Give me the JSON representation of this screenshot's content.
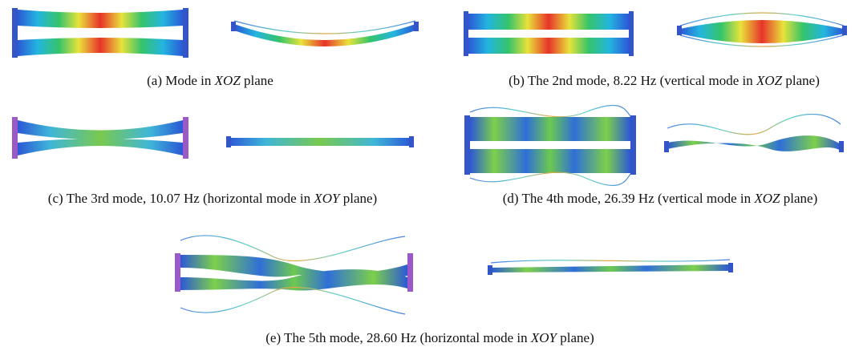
{
  "figure": {
    "panels": [
      {
        "caption": {
          "prefix": "(a) Mode in ",
          "plane": "XOZ",
          "suffix": " plane"
        }
      },
      {
        "caption": {
          "prefix": "(b) The 2nd mode, 8.22 Hz (vertical mode in ",
          "plane": "XOZ",
          "suffix": " plane)"
        }
      },
      {
        "caption": {
          "prefix": "(c) The 3rd mode, 10.07 Hz (horizontal mode in ",
          "plane": "XOY",
          "suffix": " plane)"
        }
      },
      {
        "caption": {
          "prefix": "(d) The 4th mode, 26.39 Hz (vertical mode in ",
          "plane": "XOZ",
          "suffix": " plane)"
        }
      },
      {
        "caption": {
          "prefix": "(e) The 5th mode, 28.60 Hz (horizontal mode in ",
          "plane": "XOY",
          "suffix": " plane)"
        }
      }
    ]
  }
}
